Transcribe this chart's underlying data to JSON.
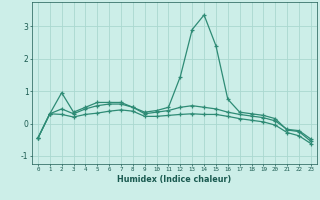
{
  "xlabel": "Humidex (Indice chaleur)",
  "x": [
    0,
    1,
    2,
    3,
    4,
    5,
    6,
    7,
    8,
    9,
    10,
    11,
    12,
    13,
    14,
    15,
    16,
    17,
    18,
    19,
    20,
    21,
    22,
    23
  ],
  "line1": [
    -0.45,
    0.3,
    0.95,
    0.35,
    0.5,
    0.65,
    0.65,
    0.65,
    0.5,
    0.35,
    0.4,
    0.5,
    1.45,
    2.9,
    3.35,
    2.4,
    0.75,
    0.35,
    0.3,
    0.25,
    0.15,
    -0.2,
    -0.25,
    -0.55
  ],
  "line2": [
    -0.45,
    0.3,
    0.45,
    0.3,
    0.45,
    0.55,
    0.6,
    0.6,
    0.5,
    0.3,
    0.35,
    0.4,
    0.5,
    0.55,
    0.5,
    0.45,
    0.35,
    0.28,
    0.23,
    0.18,
    0.08,
    -0.18,
    -0.22,
    -0.48
  ],
  "line3": [
    -0.45,
    0.3,
    0.28,
    0.2,
    0.28,
    0.32,
    0.38,
    0.42,
    0.38,
    0.22,
    0.22,
    0.25,
    0.28,
    0.3,
    0.28,
    0.28,
    0.22,
    0.15,
    0.1,
    0.05,
    -0.05,
    -0.28,
    -0.38,
    -0.62
  ],
  "ylim": [
    -1.25,
    3.75
  ],
  "yticks": [
    -1,
    0,
    1,
    2,
    3
  ],
  "xticks": [
    0,
    1,
    2,
    3,
    4,
    5,
    6,
    7,
    8,
    9,
    10,
    11,
    12,
    13,
    14,
    15,
    16,
    17,
    18,
    19,
    20,
    21,
    22,
    23
  ],
  "line_color": "#2e8b75",
  "bg_color": "#cceee8",
  "grid_color": "#aad8d0",
  "marker": "+"
}
